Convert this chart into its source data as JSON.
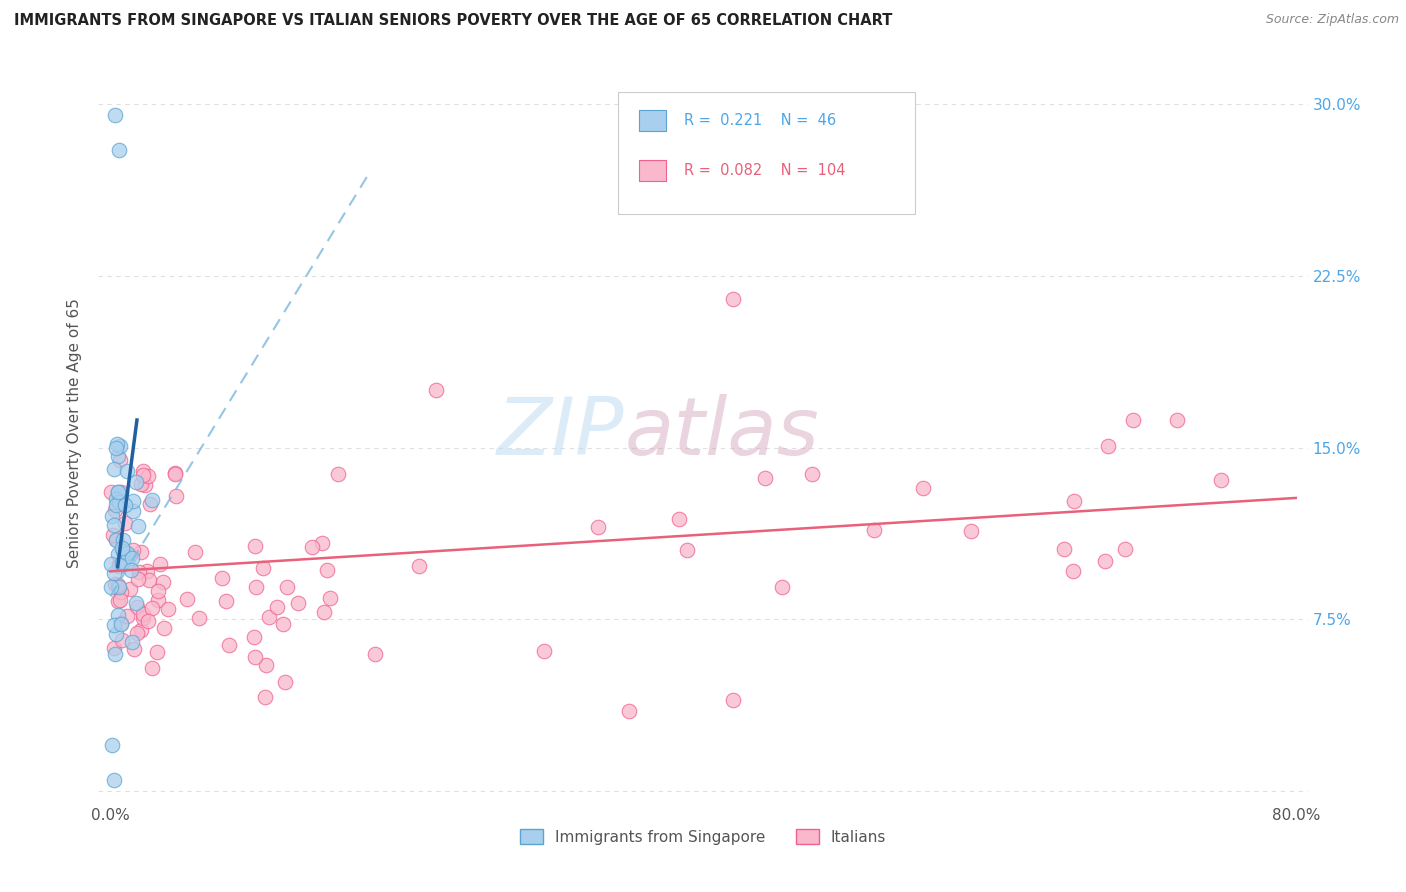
{
  "title": "IMMIGRANTS FROM SINGAPORE VS ITALIAN SENIORS POVERTY OVER THE AGE OF 65 CORRELATION CHART",
  "source_text": "Source: ZipAtlas.com",
  "ylabel": "Seniors Poverty Over the Age of 65",
  "color_blue_fill": "#a8d0ee",
  "color_blue_edge": "#5ba3d0",
  "color_pink_fill": "#f9b8cc",
  "color_pink_edge": "#f06090",
  "color_blue_line_dash": "#7ab8de",
  "color_blue_line_solid": "#2060a0",
  "color_pink_line": "#e8607a",
  "grid_color": "#e0e0e0",
  "right_tick_color": "#4da6e8",
  "watermark_color": "#c8dff0",
  "title_color": "#222222",
  "source_color": "#888888",
  "ylabel_color": "#555555",
  "legend_edge_color": "#cccccc",
  "legend_text_blue": "#4da6e8",
  "legend_text_pink": "#e8607a",
  "bottom_legend_text_color": "#555555"
}
